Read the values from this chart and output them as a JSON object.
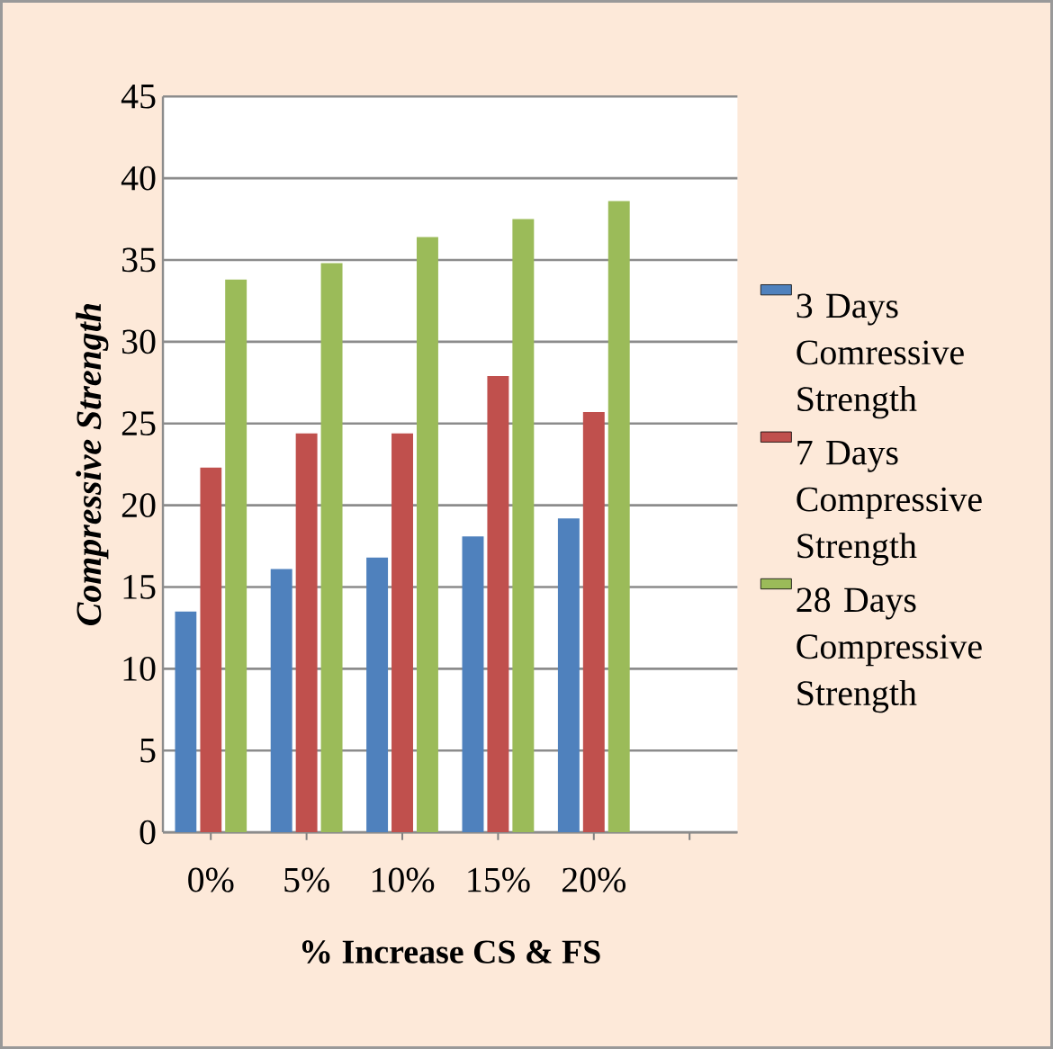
{
  "chart_data": {
    "type": "bar",
    "xlabel": "% Increase CS & FS",
    "ylabel": "Compressive   Strength",
    "categories": [
      "0%",
      "5%",
      "10%",
      "15%",
      "20%",
      null
    ],
    "series": [
      {
        "name": "3 Days Comressive Strength",
        "color": "#4f81bd",
        "values": [
          13.5,
          16.1,
          16.8,
          18.1,
          19.2,
          null
        ]
      },
      {
        "name": "7 Days Compressive Strength",
        "color": "#c0504d",
        "values": [
          22.3,
          24.4,
          24.4,
          27.9,
          25.7,
          null
        ]
      },
      {
        "name": "28 Days Compressive Strength",
        "color": "#9bbb59",
        "values": [
          33.8,
          34.8,
          36.4,
          37.5,
          38.6,
          null
        ]
      }
    ],
    "ylim": [
      0,
      45
    ],
    "yticks": [
      0,
      5,
      10,
      15,
      20,
      25,
      30,
      35,
      40,
      45
    ],
    "grid": "y",
    "legend": "right"
  }
}
